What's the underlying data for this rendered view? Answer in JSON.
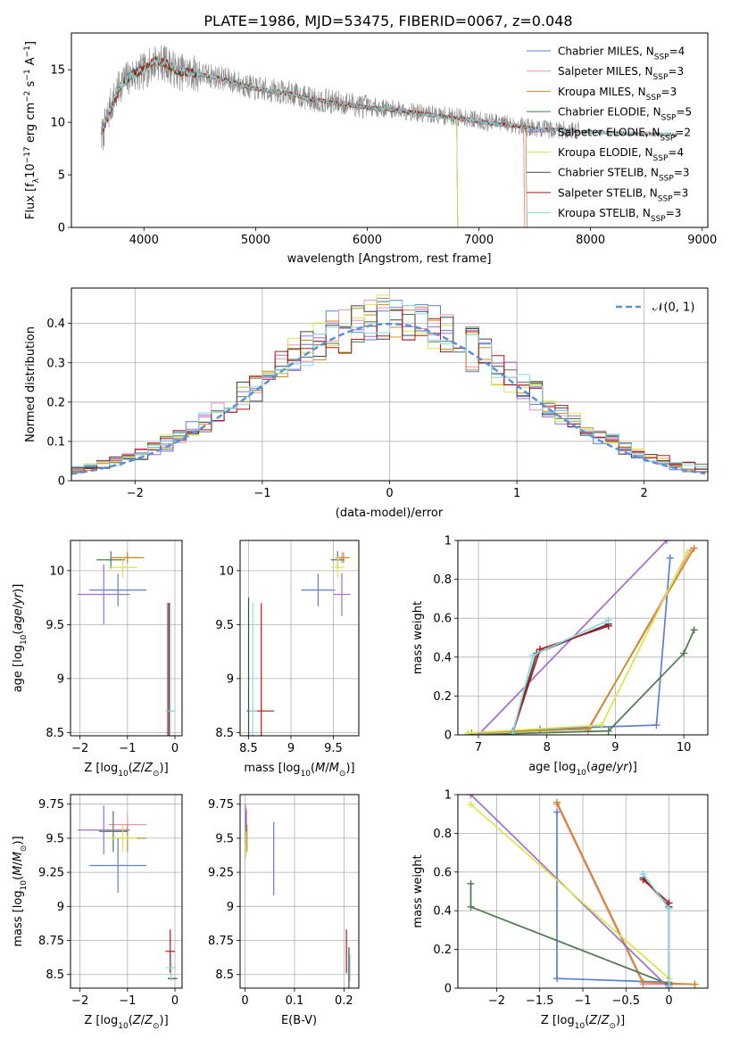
{
  "figure_title": "PLATE=1986, MJD=53475, FIBERID=0067, z=0.048",
  "colors": {
    "chabrier_miles": "#5b7fd6",
    "salpeter_miles": "#f08fb8",
    "kroupa_miles": "#c98a22",
    "chabrier_elodie": "#4e7a4e",
    "salpeter_elodie": "#a46ccf",
    "kroupa_elodie": "#d9e64a",
    "chabrier_stelib": "#444444",
    "salpeter_stelib": "#b01818",
    "kroupa_stelib": "#88d8e0",
    "normal": "#5b8fd9",
    "data": "#888888"
  },
  "legend": [
    {
      "key": "chabrier_miles",
      "base": "Chabrier MILES, N",
      "sub": "SSP",
      "tail": "=4"
    },
    {
      "key": "salpeter_miles",
      "base": "Salpeter MILES, N",
      "sub": "SSP",
      "tail": "=3"
    },
    {
      "key": "kroupa_miles",
      "base": "Kroupa MILES, N",
      "sub": "SSP",
      "tail": "=3"
    },
    {
      "key": "chabrier_elodie",
      "base": "Chabrier ELODIE, N",
      "sub": "SSP",
      "tail": "=5"
    },
    {
      "key": "salpeter_elodie",
      "base": "Salpeter ELODIE, N",
      "sub": "SSP",
      "tail": "=2"
    },
    {
      "key": "kroupa_elodie",
      "base": "Kroupa ELODIE, N",
      "sub": "SSP",
      "tail": "=4"
    },
    {
      "key": "chabrier_stelib",
      "base": "Chabrier STELIB, N",
      "sub": "SSP",
      "tail": "=3"
    },
    {
      "key": "salpeter_stelib",
      "base": "Salpeter STELIB, N",
      "sub": "SSP",
      "tail": "=3"
    },
    {
      "key": "kroupa_stelib",
      "base": "Kroupa STELIB, N",
      "sub": "SSP",
      "tail": "=3"
    }
  ],
  "chart_data": [
    {
      "id": "spectrum",
      "type": "line",
      "xlabel": "wavelength [Angstrom, rest frame]",
      "ylabel": "Flux [f_λ 10^-17 erg cm^-2 s^-1 A^-1]",
      "xlim": [
        3350,
        9050
      ],
      "ylim": [
        0,
        18.5
      ],
      "xticks": [
        4000,
        5000,
        6000,
        7000,
        8000,
        9000
      ],
      "yticks": [
        0,
        5,
        10,
        15
      ],
      "data_trace": {
        "x": [
          3620,
          3700,
          3800,
          3900,
          4000,
          4100,
          4200,
          4300,
          4500,
          4700,
          5000,
          5300,
          5500,
          5800,
          6000,
          6300,
          6500,
          6700,
          6900,
          7100,
          7300,
          7500,
          7700,
          7900
        ],
        "y": [
          8.5,
          11.5,
          13.8,
          14.5,
          14.8,
          15.8,
          15.6,
          14.8,
          14.6,
          14.2,
          13.2,
          12.8,
          12.2,
          11.8,
          11.5,
          11.2,
          10.8,
          10.6,
          10.4,
          10.0,
          9.8,
          9.4,
          9.3,
          9.2
        ]
      },
      "model_trace": {
        "x": [
          3620,
          3700,
          3800,
          3900,
          4000,
          4100,
          4200,
          4300,
          4500,
          4700,
          5000,
          5300,
          5500,
          5800,
          6000,
          6300,
          6500,
          6700,
          6900,
          7100,
          7300,
          7500,
          7700,
          7900,
          8200,
          8500,
          8770
        ],
        "y": [
          9.0,
          11.2,
          13.6,
          14.6,
          15.0,
          15.9,
          15.6,
          14.9,
          14.6,
          14.1,
          13.2,
          12.7,
          12.2,
          11.7,
          11.4,
          11.1,
          10.8,
          10.5,
          10.3,
          9.9,
          9.7,
          9.4,
          9.3,
          9.1,
          9.0,
          8.9,
          8.8
        ]
      },
      "model_end_wavelength": {
        "chabrier_miles": 7400,
        "salpeter_miles": 7400,
        "kroupa_miles": 7420,
        "chabrier_elodie": 6800,
        "salpeter_elodie": 6800,
        "kroupa_elodie": 6800,
        "chabrier_stelib": 8770,
        "salpeter_stelib": 8770,
        "kroupa_stelib": 8770
      }
    },
    {
      "id": "residuals",
      "type": "line",
      "xlabel": "(data-model)/error",
      "ylabel": "Normed distribution",
      "xlim": [
        -2.5,
        2.5
      ],
      "ylim": [
        0,
        0.49
      ],
      "xticks": [
        -2,
        -1,
        0,
        1,
        2
      ],
      "yticks": [
        0.0,
        0.1,
        0.2,
        0.3,
        0.4
      ],
      "legend_label": "𝒩(0, 1)",
      "bin_width": 0.1,
      "note": "step histograms of (data-model)/error for each of the nine models, plus the standard normal density"
    },
    {
      "id": "z_age",
      "type": "scatter",
      "xlabel": "Z [log10(Z/Z⊙)]",
      "ylabel": "age [log10(age/yr)]",
      "xlim": [
        -2.2,
        0.15
      ],
      "ylim": [
        8.47,
        10.28
      ],
      "xticks": [
        -2,
        -1,
        0
      ],
      "yticks": [
        8.5,
        9.0,
        9.5,
        10.0
      ],
      "points": [
        {
          "k": "chabrier_miles",
          "x": -1.2,
          "y": 9.82,
          "xe": 0.6,
          "ye": 0.15
        },
        {
          "k": "salpeter_miles",
          "x": -1.0,
          "y": 10.12,
          "xe": 0.25,
          "ye": 0.05
        },
        {
          "k": "kroupa_miles",
          "x": -1.0,
          "y": 10.12,
          "xe": 0.35,
          "ye": 0.05
        },
        {
          "k": "chabrier_elodie",
          "x": -1.35,
          "y": 10.1,
          "xe": 0.3,
          "ye": 0.08
        },
        {
          "k": "salpeter_elodie",
          "x": -1.5,
          "y": 9.78,
          "xe": 0.55,
          "ye": 0.28
        },
        {
          "k": "kroupa_elodie",
          "x": -1.1,
          "y": 10.03,
          "xe": 0.3,
          "ye": 0.1
        },
        {
          "k": "chabrier_stelib",
          "x": -0.12,
          "y": 8.7,
          "xe": 0.05,
          "ye": 1.0
        },
        {
          "k": "salpeter_stelib",
          "x": -0.15,
          "y": 8.7,
          "xe": 0.02,
          "ye": 1.0
        },
        {
          "k": "kroupa_stelib",
          "x": -0.1,
          "y": 8.7,
          "xe": 0.1,
          "ye": 1.0
        }
      ]
    },
    {
      "id": "mass_age",
      "type": "scatter",
      "xlabel": "mass [log10(M/M⊙)]",
      "ylabel": "",
      "xlim": [
        8.4,
        9.8
      ],
      "ylim": [
        8.47,
        10.28
      ],
      "xticks": [
        8.5,
        9.0,
        9.5
      ],
      "yticks": [
        8.5,
        9.0,
        9.5,
        10.0
      ],
      "points": [
        {
          "k": "chabrier_miles",
          "x": 9.32,
          "y": 9.82,
          "xe": 0.2,
          "ye": 0.15
        },
        {
          "k": "salpeter_miles",
          "x": 9.6,
          "y": 10.12,
          "xe": 0.08,
          "ye": 0.05
        },
        {
          "k": "kroupa_miles",
          "x": 9.62,
          "y": 10.12,
          "xe": 0.07,
          "ye": 0.05
        },
        {
          "k": "chabrier_elodie",
          "x": 9.55,
          "y": 10.1,
          "xe": 0.08,
          "ye": 0.08
        },
        {
          "k": "salpeter_elodie",
          "x": 9.6,
          "y": 9.78,
          "xe": 0.1,
          "ye": 0.2
        },
        {
          "k": "kroupa_elodie",
          "x": 9.55,
          "y": 10.03,
          "xe": 0.08,
          "ye": 0.1
        },
        {
          "k": "chabrier_stelib",
          "x": 8.5,
          "y": 8.7,
          "xe": 0.02,
          "ye": 1.05
        },
        {
          "k": "salpeter_stelib",
          "x": 8.65,
          "y": 8.7,
          "xe": 0.15,
          "ye": 1.0
        },
        {
          "k": "kroupa_stelib",
          "x": 8.55,
          "y": 8.7,
          "xe": 0.05,
          "ye": 1.0
        }
      ]
    },
    {
      "id": "age_weight",
      "type": "line",
      "xlabel": "age [log10(age/yr)]",
      "ylabel": "mass weight",
      "xlim": [
        6.7,
        10.35
      ],
      "ylim": [
        0,
        1.0
      ],
      "xticks": [
        7,
        8,
        9,
        10
      ],
      "yticks": [
        0.0,
        0.2,
        0.4,
        0.6,
        0.8,
        1.0
      ],
      "series": [
        {
          "k": "chabrier_miles",
          "x": [
            7.5,
            7.9,
            9.6,
            9.8
          ],
          "y": [
            0.02,
            0.03,
            0.05,
            0.91
          ]
        },
        {
          "k": "salpeter_miles",
          "x": [
            8.6,
            10.1
          ],
          "y": [
            0.02,
            0.95
          ]
        },
        {
          "k": "kroupa_miles",
          "x": [
            6.9,
            8.6,
            10.15
          ],
          "y": [
            0.01,
            0.03,
            0.96
          ]
        },
        {
          "k": "chabrier_elodie",
          "x": [
            6.85,
            8.9,
            10.0,
            10.15
          ],
          "y": [
            0.0,
            0.02,
            0.42,
            0.54
          ]
        },
        {
          "k": "salpeter_elodie",
          "x": [
            7.0,
            9.75
          ],
          "y": [
            0.0,
            1.0
          ]
        },
        {
          "k": "kroupa_elodie",
          "x": [
            6.85,
            8.8,
            10.05
          ],
          "y": [
            0.01,
            0.05,
            0.94
          ]
        },
        {
          "k": "chabrier_stelib",
          "x": [
            7.5,
            7.85,
            8.9
          ],
          "y": [
            0.01,
            0.42,
            0.57
          ]
        },
        {
          "k": "salpeter_stelib",
          "x": [
            7.5,
            7.9,
            8.9
          ],
          "y": [
            0.01,
            0.44,
            0.56
          ]
        },
        {
          "k": "kroupa_stelib",
          "x": [
            7.5,
            7.8,
            8.9
          ],
          "y": [
            0.01,
            0.41,
            0.59
          ]
        }
      ]
    },
    {
      "id": "z_mass",
      "type": "scatter",
      "xlabel": "Z [log10(Z/Z⊙)]",
      "ylabel": "mass [log10(M/M⊙)]",
      "xlim": [
        -2.2,
        0.15
      ],
      "ylim": [
        8.4,
        9.82
      ],
      "xticks": [
        -2,
        -1,
        0
      ],
      "yticks": [
        8.5,
        8.75,
        9.0,
        9.25,
        9.5,
        9.75
      ],
      "points": [
        {
          "k": "chabrier_miles",
          "x": -1.2,
          "y": 9.3,
          "xe": 0.6,
          "ye": 0.2
        },
        {
          "k": "salpeter_miles",
          "x": -1.0,
          "y": 9.6,
          "xe": 0.4,
          "ye": 0.08
        },
        {
          "k": "kroupa_miles",
          "x": -1.0,
          "y": 9.5,
          "xe": 0.4,
          "ye": 0.1
        },
        {
          "k": "chabrier_elodie",
          "x": -1.3,
          "y": 9.55,
          "xe": 0.3,
          "ye": 0.15
        },
        {
          "k": "salpeter_elodie",
          "x": -1.5,
          "y": 9.56,
          "xe": 0.55,
          "ye": 0.18
        },
        {
          "k": "kroupa_elodie",
          "x": -1.1,
          "y": 9.5,
          "xe": 0.3,
          "ye": 0.1
        },
        {
          "k": "chabrier_stelib",
          "x": -0.05,
          "y": 8.47,
          "xe": 0.1,
          "ye": 0.0
        },
        {
          "k": "salpeter_stelib",
          "x": -0.1,
          "y": 8.67,
          "xe": 0.1,
          "ye": 0.16
        },
        {
          "k": "kroupa_stelib",
          "x": -0.08,
          "y": 8.55,
          "xe": 0.1,
          "ye": 0.1
        }
      ]
    },
    {
      "id": "ebv_mass",
      "type": "scatter",
      "xlabel": "E(B-V)",
      "ylabel": "",
      "xlim": [
        -0.01,
        0.23
      ],
      "ylim": [
        8.4,
        9.82
      ],
      "xticks": [
        0.0,
        0.1,
        0.2
      ],
      "yticks": [
        8.5,
        8.75,
        9.0,
        9.25,
        9.5,
        9.75
      ],
      "points": [
        {
          "k": "chabrier_miles",
          "x": 0.058,
          "y": 9.35,
          "xe": 0.0,
          "ye": 0.27
        },
        {
          "k": "salpeter_miles",
          "x": 0.003,
          "y": 9.6,
          "xe": 0.0,
          "ye": 0.12
        },
        {
          "k": "kroupa_miles",
          "x": 0.004,
          "y": 9.5,
          "xe": 0.0,
          "ye": 0.1
        },
        {
          "k": "chabrier_elodie",
          "x": 0.002,
          "y": 9.55,
          "xe": 0.0,
          "ye": 0.15
        },
        {
          "k": "salpeter_elodie",
          "x": 0.001,
          "y": 9.6,
          "xe": 0.0,
          "ye": 0.15
        },
        {
          "k": "kroupa_elodie",
          "x": 0.002,
          "y": 9.45,
          "xe": 0.0,
          "ye": 0.1
        },
        {
          "k": "chabrier_stelib",
          "x": 0.21,
          "y": 8.5,
          "xe": 0.0,
          "ye": 0.2
        },
        {
          "k": "salpeter_stelib",
          "x": 0.205,
          "y": 8.67,
          "xe": 0.0,
          "ye": 0.16
        },
        {
          "k": "kroupa_stelib",
          "x": 0.212,
          "y": 8.55,
          "xe": 0.0,
          "ye": 0.1
        }
      ]
    },
    {
      "id": "z_weight",
      "type": "line",
      "xlabel": "Z [log10(Z/Z⊙)]",
      "ylabel": "mass weight",
      "xlim": [
        -2.45,
        0.45
      ],
      "ylim": [
        0,
        1.0
      ],
      "xticks": [
        -2.0,
        -1.5,
        -1.0,
        -0.5,
        0.0
      ],
      "yticks": [
        0.0,
        0.2,
        0.4,
        0.6,
        0.8,
        1.0
      ],
      "series": [
        {
          "k": "chabrier_miles",
          "x": [
            -1.3,
            -1.3,
            0.0,
            0.0
          ],
          "y": [
            0.91,
            0.05,
            0.03,
            0.02
          ]
        },
        {
          "k": "salpeter_miles",
          "x": [
            -1.3,
            -0.3,
            0.3
          ],
          "y": [
            0.95,
            0.02,
            0.02
          ]
        },
        {
          "k": "kroupa_miles",
          "x": [
            -1.3,
            -0.3,
            0.3
          ],
          "y": [
            0.96,
            0.03,
            0.02
          ]
        },
        {
          "k": "chabrier_elodie",
          "x": [
            -2.3,
            -2.3,
            0.0
          ],
          "y": [
            0.54,
            0.42,
            0.02
          ]
        },
        {
          "k": "salpeter_elodie",
          "x": [
            -2.3,
            0.0
          ],
          "y": [
            1.0,
            0.0
          ]
        },
        {
          "k": "kroupa_elodie",
          "x": [
            -2.3,
            0.0
          ],
          "y": [
            0.95,
            0.05
          ]
        },
        {
          "k": "chabrier_stelib",
          "x": [
            -0.3,
            0.0,
            0.0
          ],
          "y": [
            0.57,
            0.42,
            0.01
          ]
        },
        {
          "k": "salpeter_stelib",
          "x": [
            -0.3,
            0.0,
            0.0
          ],
          "y": [
            0.56,
            0.44,
            0.01
          ]
        },
        {
          "k": "kroupa_stelib",
          "x": [
            -0.3,
            0.0,
            0.0
          ],
          "y": [
            0.59,
            0.41,
            0.01
          ]
        }
      ]
    }
  ]
}
